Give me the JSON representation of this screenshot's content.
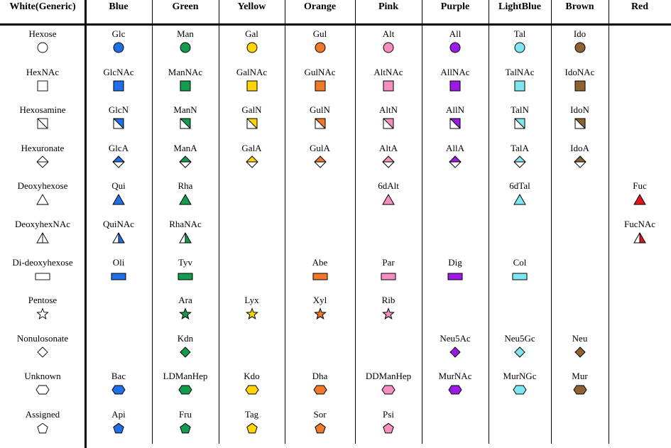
{
  "colors": {
    "White": "#ffffff",
    "Blue": "#1e6fe8",
    "Green": "#139b4e",
    "Yellow": "#ffd400",
    "Orange": "#f0782a",
    "Pink": "#f58ec1",
    "Purple": "#9b1be4",
    "LightBlue": "#7ee6f0",
    "Brown": "#8e6133",
    "Red": "#e2141b"
  },
  "headers": [
    {
      "key": "White",
      "lines": [
        "White",
        "(Generic)"
      ]
    },
    {
      "key": "Blue",
      "lines": [
        "Blue",
        ""
      ]
    },
    {
      "key": "Green",
      "lines": [
        "Green",
        ""
      ]
    },
    {
      "key": "Yellow",
      "lines": [
        "Yellow",
        ""
      ]
    },
    {
      "key": "Orange",
      "lines": [
        "Orange",
        ""
      ]
    },
    {
      "key": "Pink",
      "lines": [
        "Pink",
        ""
      ]
    },
    {
      "key": "Purple",
      "lines": [
        "Purple",
        ""
      ]
    },
    {
      "key": "LightBlue",
      "lines": [
        "Light",
        "Blue"
      ]
    },
    {
      "key": "Brown",
      "lines": [
        "Brown",
        ""
      ]
    },
    {
      "key": "Red",
      "lines": [
        "Red",
        ""
      ]
    }
  ],
  "rows": [
    {
      "shape": "circle",
      "cells": [
        "Hexose",
        "Glc",
        "Man",
        "Gal",
        "Gul",
        "Alt",
        "All",
        "Tal",
        "Ido",
        ""
      ]
    },
    {
      "shape": "square",
      "cells": [
        "HexNAc",
        "GlcNAc",
        "ManNAc",
        "GalNAc",
        "GulNAc",
        "AltNAc",
        "AllNAc",
        "TalNAc",
        "IdoNAc",
        ""
      ]
    },
    {
      "shape": "square-crossed",
      "cells": [
        "Hexosamine",
        "GlcN",
        "ManN",
        "GalN",
        "GulN",
        "AltN",
        "AllN",
        "TalN",
        "IdoN",
        ""
      ]
    },
    {
      "shape": "diamond-divided",
      "cells": [
        "Hexuronate",
        "GlcA",
        "ManA",
        "GalA",
        "GulA",
        "AltA",
        "AllA",
        "TalA",
        "IdoA",
        ""
      ]
    },
    {
      "shape": "triangle",
      "cells": [
        "Deoxyhexose",
        "Qui",
        "Rha",
        "",
        "",
        "6dAlt",
        "",
        "6dTal",
        "",
        "Fuc"
      ]
    },
    {
      "shape": "triangle-divided",
      "cells": [
        "DeoxyhexNAc",
        "QuiNAc",
        "RhaNAc",
        "",
        "",
        "",
        "",
        "",
        "",
        "FucNAc"
      ]
    },
    {
      "shape": "rectangle",
      "cells": [
        "Di-deoxyhexose",
        "Oli",
        "Tyv",
        "",
        "Abe",
        "Par",
        "Dig",
        "Col",
        "",
        ""
      ]
    },
    {
      "shape": "star",
      "cells": [
        "Pentose",
        "",
        "Ara",
        "Lyx",
        "Xyl",
        "Rib",
        "",
        "",
        "",
        ""
      ]
    },
    {
      "shape": "diamond",
      "cells": [
        "Nonulosonate",
        "",
        "Kdn",
        "",
        "",
        "",
        "Neu5Ac",
        "Neu5Gc",
        "Neu",
        ""
      ]
    },
    {
      "shape": "hexagon",
      "cells": [
        "Unknown",
        "Bac",
        "LDManHep",
        "Kdo",
        "Dha",
        "DDManHep",
        "MurNAc",
        "MurNGc",
        "Mur",
        ""
      ]
    },
    {
      "shape": "pentagon",
      "cells": [
        "Assigned",
        "Api",
        "Fru",
        "Tag",
        "Sor",
        "Psi",
        "",
        "",
        "",
        ""
      ]
    }
  ]
}
